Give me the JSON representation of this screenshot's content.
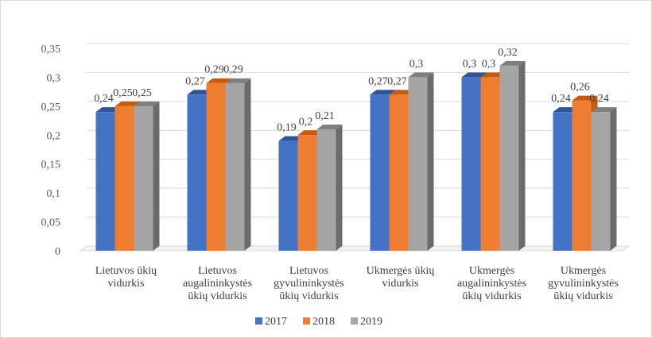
{
  "chart_data": {
    "type": "bar",
    "title": "",
    "xlabel": "",
    "ylabel": "",
    "ylim": [
      0,
      0.35
    ],
    "yticks": [
      "0",
      "0,05",
      "0,1",
      "0,15",
      "0,2",
      "0,25",
      "0,3",
      "0,35"
    ],
    "ytick_values": [
      0,
      0.05,
      0.1,
      0.15,
      0.2,
      0.25,
      0.3,
      0.35
    ],
    "grid": true,
    "legend_position": "bottom",
    "categories": [
      [
        "Lietuvos ūkių",
        "vidurkis"
      ],
      [
        "Lietuvos",
        "augalininkystės",
        "ūkių vidurkis"
      ],
      [
        "Lietuvos",
        "gyvulininkystės",
        "ūkių vidurkis"
      ],
      [
        "Ukmergės ūkių",
        "vidurkis"
      ],
      [
        "Ukmergės",
        "augalininkystės",
        "ūkių vidurkis"
      ],
      [
        "Ukmergės",
        "gyvulininkystės",
        "ūkių vidurkis"
      ]
    ],
    "series": [
      {
        "name": "2017",
        "color": "#4472c4",
        "top": "#2f5597",
        "side": "#2f5597",
        "values": [
          0.24,
          0.27,
          0.19,
          0.27,
          0.3,
          0.24
        ],
        "labels": [
          "0,24",
          "0,27",
          "0,19",
          "0,27",
          "0,3",
          "0,24"
        ]
      },
      {
        "name": "2018",
        "color": "#ed7d31",
        "top": "#c55a11",
        "side": "#c55a11",
        "values": [
          0.25,
          0.29,
          0.2,
          0.27,
          0.3,
          0.26
        ],
        "labels": [
          "0,25",
          "0,29",
          "0,2",
          "0,27",
          "0,3",
          "0,26"
        ]
      },
      {
        "name": "2019",
        "color": "#a5a5a5",
        "top": "#7f7f7f",
        "side": "#6b6b6b",
        "values": [
          0.25,
          0.29,
          0.21,
          0.3,
          0.32,
          0.24
        ],
        "labels": [
          "0,25",
          "0,29",
          "0,21",
          "0,3",
          "0,32",
          "0,24"
        ]
      }
    ]
  }
}
